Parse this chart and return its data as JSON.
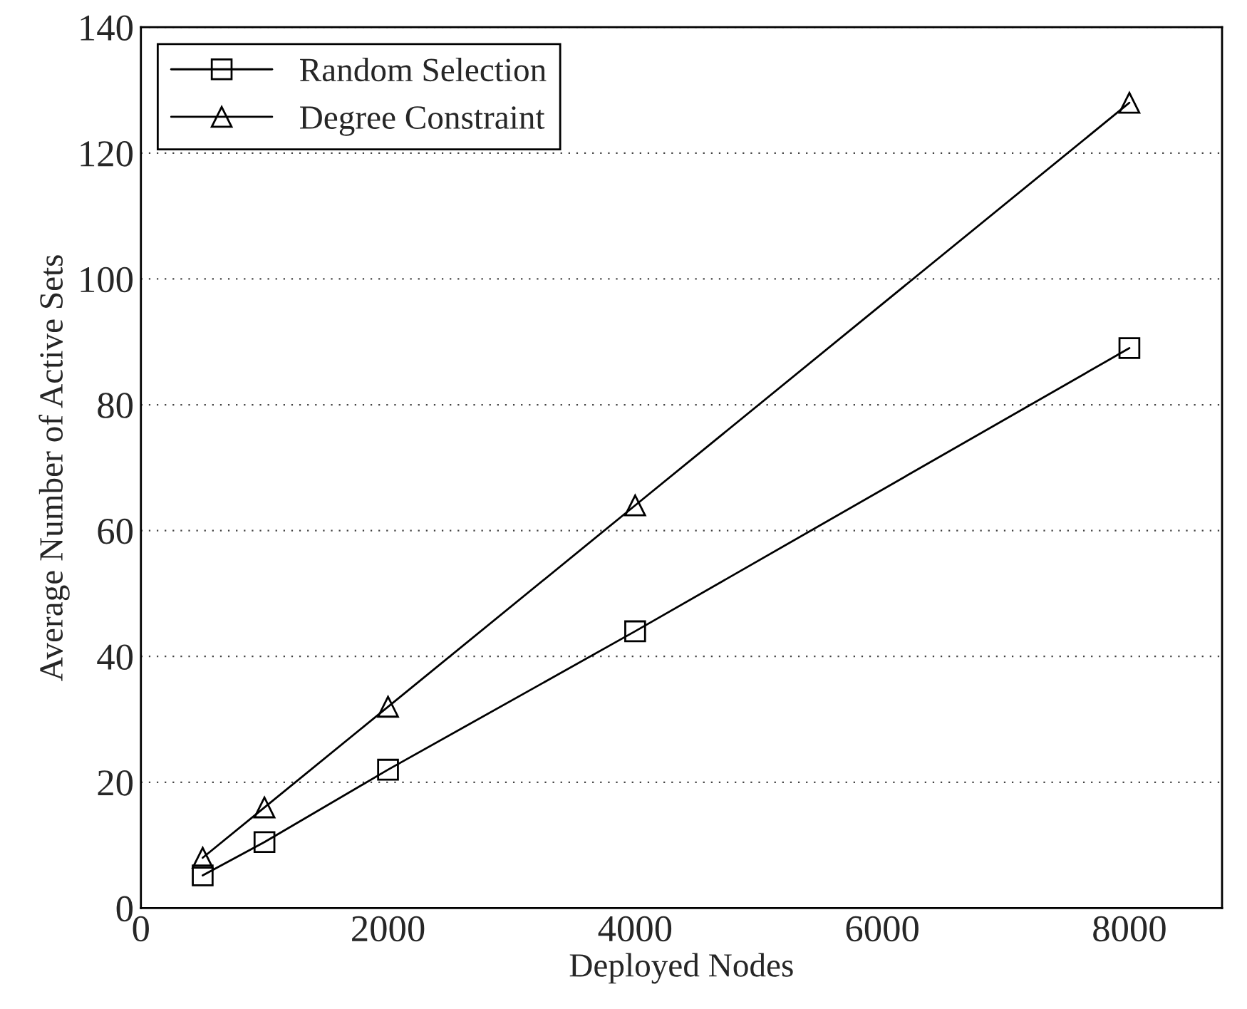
{
  "chart_data": {
    "type": "line",
    "xlabel": "Deployed Nodes",
    "ylabel": "Average Number of Active Sets",
    "x": [
      500,
      1000,
      2000,
      4000,
      8000
    ],
    "series": [
      {
        "name": "Random Selection",
        "color": "#000000",
        "marker": "square",
        "values": [
          5.2,
          10.5,
          22,
          44,
          89
        ]
      },
      {
        "name": "Degree Constraint",
        "color": "#000000",
        "marker": "triangle",
        "values": [
          8,
          16,
          32,
          64,
          128
        ]
      }
    ],
    "xlim": [
      0,
      8750
    ],
    "xticks": [
      0,
      2000,
      4000,
      6000,
      8000
    ],
    "ylim": [
      0,
      140
    ],
    "yticks": [
      0,
      20,
      40,
      60,
      80,
      100,
      120,
      140
    ],
    "grid": "y",
    "legend": "top left",
    "line_style": "solid"
  }
}
